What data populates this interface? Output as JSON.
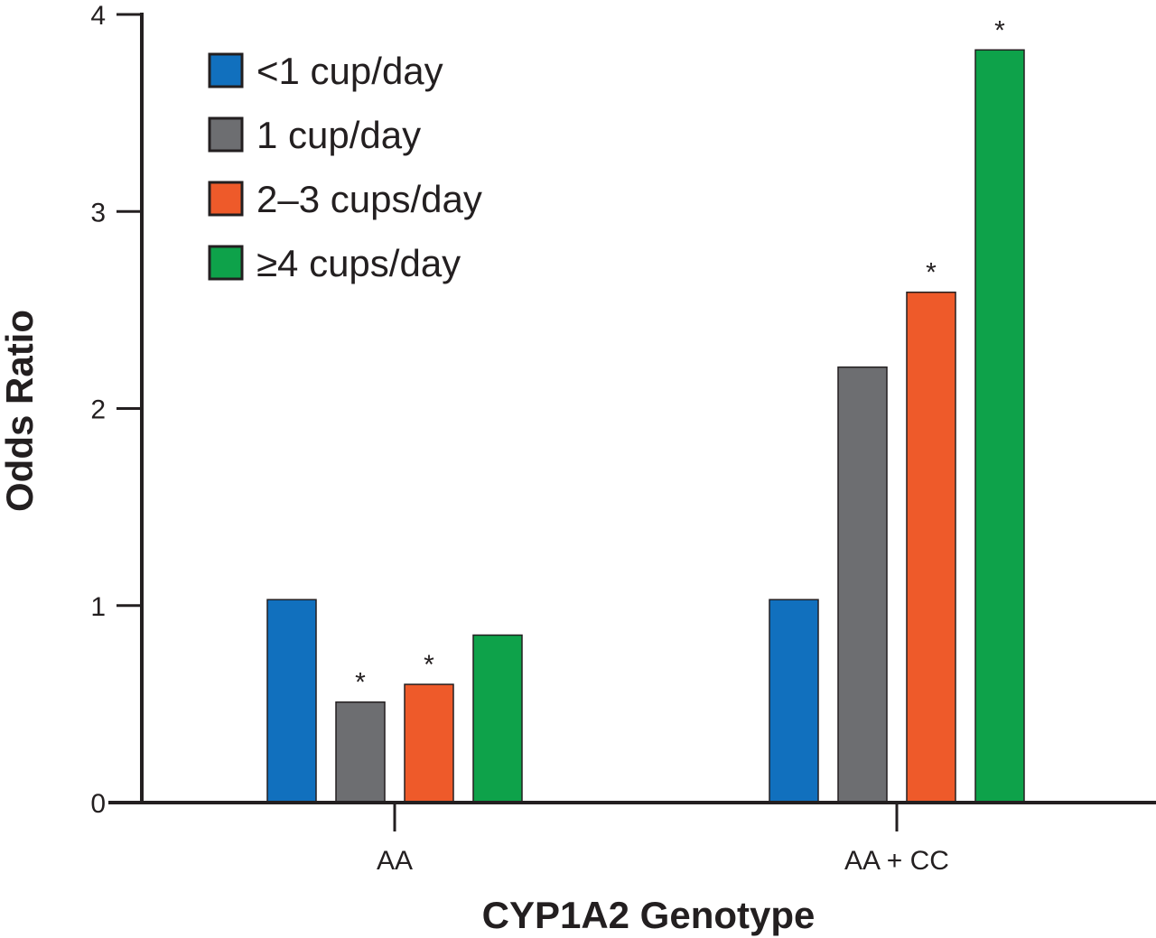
{
  "chart_data": {
    "type": "bar",
    "title": "",
    "xlabel": "CYP1A2 Genotype",
    "ylabel": "Odds Ratio",
    "ylim": [
      0,
      4
    ],
    "yticks": [
      "0",
      "1",
      "2",
      "3",
      "4"
    ],
    "categories": [
      "AA",
      "AA + CC"
    ],
    "grid": false,
    "legend_position": "top-left",
    "significance_marker": "*",
    "series": [
      {
        "name": "<1 cup/day",
        "color": "#1170be",
        "values": [
          1.03,
          1.03
        ],
        "significant": [
          false,
          false
        ]
      },
      {
        "name": "1 cup/day",
        "color": "#6d6e71",
        "values": [
          0.51,
          2.21
        ],
        "significant": [
          true,
          false
        ]
      },
      {
        "name": "2–3 cups/day",
        "color": "#ee5a2a",
        "values": [
          0.6,
          2.59
        ],
        "significant": [
          true,
          true
        ]
      },
      {
        "name": "≥4 cups/day",
        "color": "#0ea24a",
        "values": [
          0.85,
          3.82
        ],
        "significant": [
          false,
          true
        ]
      }
    ]
  }
}
